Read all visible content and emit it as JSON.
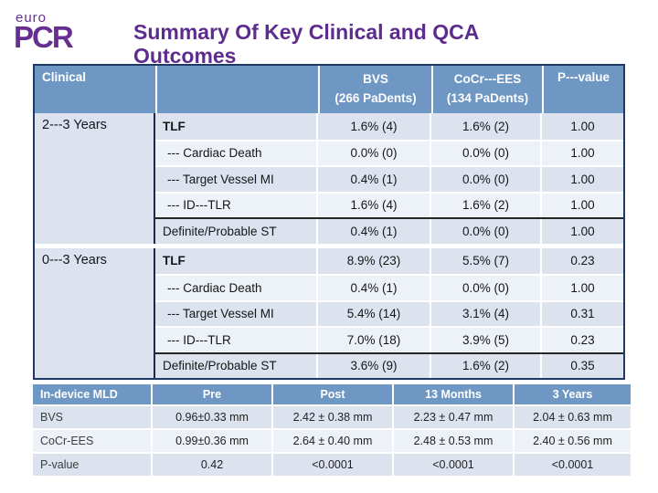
{
  "logo": {
    "top": "euro",
    "main": "PCR"
  },
  "title": {
    "line1": "Summary Of Key Clinical and QCA",
    "line2": "Outcomes"
  },
  "colors": {
    "header_blue": "#6E97C4",
    "band_dark": "#DCE3EF",
    "band_light": "#EDF1F8",
    "border_navy": "#1F3864",
    "title_purple": "#5E2C8E",
    "logo_purple": "#672E91"
  },
  "clinical_table": {
    "header": {
      "col1": "Clinical",
      "bvs_line1": "BVS",
      "bvs_line2": "(266 PaDents)",
      "cocr_line1": "CoCr---EES",
      "cocr_line2": "(134 PaDents)",
      "pvalue": "P---value"
    },
    "sections": [
      {
        "period": "2---3 Years",
        "rows": [
          {
            "label": "TLF",
            "bvs": "1.6% (4)",
            "cocr": "1.6% (2)",
            "p": "1.00"
          },
          {
            "label": "--- Cardiac Death",
            "bvs": "0.0% (0)",
            "cocr": "0.0% (0)",
            "p": "1.00"
          },
          {
            "label": "--- Target Vessel MI",
            "bvs": "0.4% (1)",
            "cocr": "0.0% (0)",
            "p": "1.00"
          },
          {
            "label": "--- ID---TLR",
            "bvs": "1.6% (4)",
            "cocr": "1.6% (2)",
            "p": "1.00"
          },
          {
            "label": "Definite/Probable ST",
            "bvs": "0.4% (1)",
            "cocr": "0.0% (0)",
            "p": "1.00"
          }
        ]
      },
      {
        "period": "0---3 Years",
        "rows": [
          {
            "label": "TLF",
            "bvs": "8.9% (23)",
            "cocr": "5.5% (7)",
            "p": "0.23"
          },
          {
            "label": "--- Cardiac Death",
            "bvs": "0.4% (1)",
            "cocr": "0.0% (0)",
            "p": "1.00"
          },
          {
            "label": "--- Target Vessel MI",
            "bvs": "5.4% (14)",
            "cocr": "3.1% (4)",
            "p": "0.31"
          },
          {
            "label": "--- ID---TLR",
            "bvs": "7.0% (18)",
            "cocr": "3.9% (5)",
            "p": "0.23"
          },
          {
            "label": "Definite/Probable ST",
            "bvs": "3.6% (9)",
            "cocr": "1.6% (2)",
            "p": "0.35"
          }
        ]
      }
    ]
  },
  "qca_table": {
    "headers": [
      "In-device MLD",
      "Pre",
      "Post",
      "13 Months",
      "3 Years"
    ],
    "rows": [
      {
        "label": "BVS",
        "values": [
          "0.96±0.33 mm",
          "2.42 ± 0.38 mm",
          "2.23 ± 0.47 mm",
          "2.04 ± 0.63 mm"
        ]
      },
      {
        "label": "CoCr-EES",
        "values": [
          "0.99±0.36 mm",
          "2.64 ± 0.40 mm",
          "2.48 ± 0.53 mm",
          "2.40 ± 0.56 mm"
        ]
      },
      {
        "label": "P-value",
        "values": [
          "0.42",
          "<0.0001",
          "<0.0001",
          "<0.0001"
        ]
      }
    ]
  }
}
